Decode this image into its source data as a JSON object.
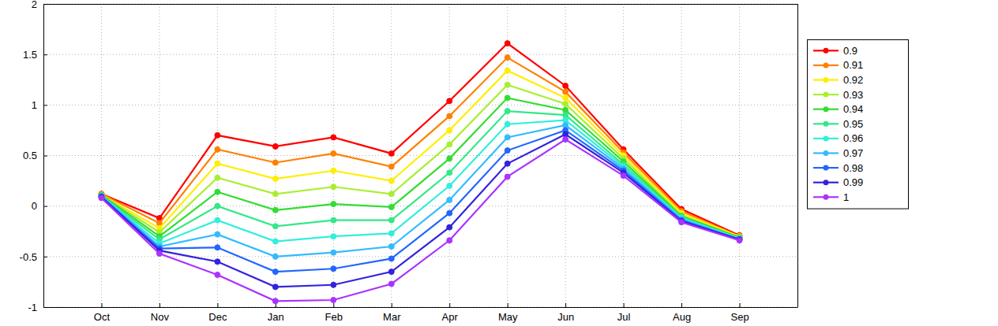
{
  "chart_data": {
    "type": "line",
    "categories": [
      "Oct",
      "Nov",
      "Dec",
      "Jan",
      "Feb",
      "Mar",
      "Apr",
      "May",
      "Jun",
      "Jul",
      "Aug",
      "Sep"
    ],
    "ylim": [
      -1,
      2
    ],
    "yticks": [
      -1,
      -0.5,
      0,
      0.5,
      1,
      1.5,
      2
    ],
    "grid": true,
    "legend": "right",
    "marker": "circle",
    "series": [
      {
        "name": "0.9",
        "color": "#ff0000",
        "values": [
          0.12,
          -0.12,
          0.7,
          0.59,
          0.68,
          0.52,
          1.04,
          1.61,
          1.19,
          0.56,
          -0.03,
          -0.29
        ]
      },
      {
        "name": "0.91",
        "color": "#ff8000",
        "values": [
          0.12,
          -0.17,
          0.56,
          0.43,
          0.52,
          0.39,
          0.89,
          1.47,
          1.13,
          0.53,
          -0.05,
          -0.3
        ]
      },
      {
        "name": "0.92",
        "color": "#ffee00",
        "values": [
          0.11,
          -0.22,
          0.42,
          0.27,
          0.35,
          0.25,
          0.75,
          1.34,
          1.07,
          0.5,
          -0.07,
          -0.3
        ]
      },
      {
        "name": "0.93",
        "color": "#aaee33",
        "values": [
          0.11,
          -0.26,
          0.28,
          0.12,
          0.19,
          0.12,
          0.61,
          1.2,
          1.01,
          0.47,
          -0.09,
          -0.31
        ]
      },
      {
        "name": "0.94",
        "color": "#33dd33",
        "values": [
          0.11,
          -0.3,
          0.14,
          -0.04,
          0.02,
          -0.01,
          0.47,
          1.07,
          0.95,
          0.44,
          -0.1,
          -0.31
        ]
      },
      {
        "name": "0.95",
        "color": "#33e888",
        "values": [
          0.1,
          -0.33,
          0.0,
          -0.2,
          -0.14,
          -0.14,
          0.33,
          0.94,
          0.9,
          0.41,
          -0.11,
          -0.32
        ]
      },
      {
        "name": "0.96",
        "color": "#33eedd",
        "values": [
          0.1,
          -0.37,
          -0.14,
          -0.35,
          -0.3,
          -0.27,
          0.2,
          0.81,
          0.85,
          0.39,
          -0.12,
          -0.32
        ]
      },
      {
        "name": "0.97",
        "color": "#33bbff",
        "values": [
          0.1,
          -0.4,
          -0.28,
          -0.5,
          -0.46,
          -0.4,
          0.06,
          0.68,
          0.8,
          0.37,
          -0.13,
          -0.33
        ]
      },
      {
        "name": "0.98",
        "color": "#2266ff",
        "values": [
          0.09,
          -0.42,
          -0.41,
          -0.65,
          -0.62,
          -0.52,
          -0.07,
          0.55,
          0.75,
          0.35,
          -0.14,
          -0.33
        ]
      },
      {
        "name": "0.99",
        "color": "#3322dd",
        "values": [
          0.09,
          -0.44,
          -0.55,
          -0.8,
          -0.78,
          -0.65,
          -0.21,
          0.42,
          0.71,
          0.33,
          -0.15,
          -0.33
        ]
      },
      {
        "name": "1",
        "color": "#aa33ff",
        "values": [
          0.08,
          -0.47,
          -0.68,
          -0.94,
          -0.93,
          -0.77,
          -0.34,
          0.29,
          0.66,
          0.3,
          -0.16,
          -0.34
        ]
      }
    ]
  }
}
